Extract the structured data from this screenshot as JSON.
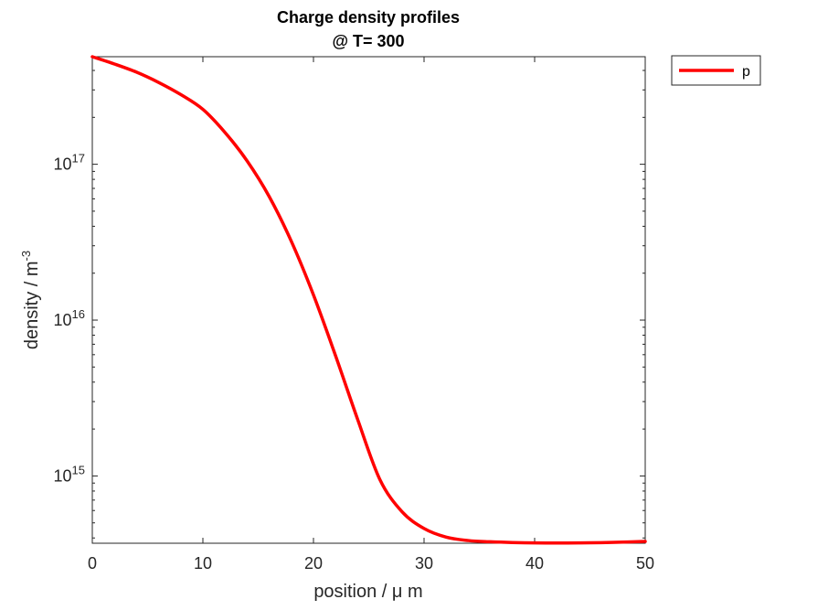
{
  "chart_data": {
    "type": "line",
    "title": [
      "Charge density profiles",
      "@ T= 300"
    ],
    "xlabel": "position / μ m",
    "ylabel": {
      "text": "density / m",
      "superscript": "-3"
    },
    "xlim": [
      0,
      50
    ],
    "ylim": [
      370000000000000.0,
      4.9e+17
    ],
    "yscale": "log",
    "xticks": [
      0,
      10,
      20,
      30,
      40,
      50
    ],
    "yticks": [
      {
        "value": 1000000000000000.0,
        "base": "10",
        "exp": "15"
      },
      {
        "value": 1e+16,
        "base": "10",
        "exp": "16"
      },
      {
        "value": 1e+17,
        "base": "10",
        "exp": "17"
      }
    ],
    "legend": {
      "position": "outside-top-right"
    },
    "series": [
      {
        "name": "p",
        "color": "#ff0000",
        "x": [
          0,
          2,
          4,
          6,
          8,
          10,
          12,
          14,
          16,
          18,
          20,
          22,
          24,
          26,
          28,
          30,
          32,
          34,
          36,
          38,
          40,
          42,
          44,
          46,
          48,
          50
        ],
        "y": [
          4.9e+17,
          4.4e+17,
          3.9e+17,
          3.35e+17,
          2.8e+17,
          2.25e+17,
          1.6e+17,
          1.05e+17,
          6.2e+16,
          3.2e+16,
          1.45e+16,
          5900000000000000.0,
          2300000000000000.0,
          950000000000000.0,
          590000000000000.0,
          460000000000000.0,
          405000000000000.0,
          385000000000000.0,
          378000000000000.0,
          374000000000000.0,
          372000000000000.0,
          371000000000000.0,
          372000000000000.0,
          373000000000000.0,
          376000000000000.0,
          380000000000000.0
        ]
      }
    ]
  }
}
